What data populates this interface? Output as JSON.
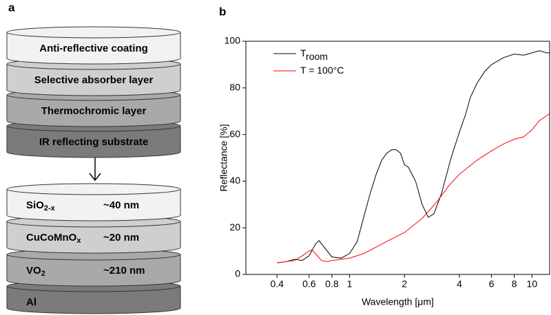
{
  "diagram": {
    "panel_label": "a",
    "stack_top": [
      {
        "text": "Anti-reflective coating",
        "color": "#f2f2f2"
      },
      {
        "text": "Selective absorber layer",
        "color": "#cfcfcf"
      },
      {
        "text": "Thermochromic layer",
        "color": "#a9a9a9"
      },
      {
        "text": "IR reflecting substrate",
        "color": "#7b7b7b"
      }
    ],
    "stack_bottom": [
      {
        "material": [
          "SiO",
          "2-x"
        ],
        "thickness": "~40 nm",
        "color": "#f2f2f2"
      },
      {
        "material": [
          "CuCoMnO",
          "x"
        ],
        "thickness": "~20 nm",
        "color": "#cfcfcf"
      },
      {
        "material": [
          "VO",
          "2"
        ],
        "thickness": "~210 nm",
        "color": "#a9a9a9"
      },
      {
        "material": [
          "Al"
        ],
        "color": "#7b7b7b"
      }
    ]
  },
  "chart_data": {
    "type": "line",
    "panel_label": "b",
    "x_label": "Wavelength [μm]",
    "y_label": "Reflectance [%]",
    "xscale": "log",
    "xlim": [
      0.27,
      12.5
    ],
    "ylim": [
      0,
      100
    ],
    "xticks": [
      0.4,
      0.6,
      0.8,
      1,
      2,
      4,
      6,
      8,
      10
    ],
    "yticks": [
      0,
      20,
      40,
      60,
      80,
      100
    ],
    "legend": "top-left",
    "series": [
      {
        "name": "T",
        "name_sub": "room",
        "color": "#000000",
        "x": [
          0.4,
          0.45,
          0.5,
          0.55,
          0.6,
          0.65,
          0.68,
          0.72,
          0.8,
          0.9,
          1.0,
          1.1,
          1.2,
          1.3,
          1.4,
          1.5,
          1.6,
          1.7,
          1.8,
          1.9,
          2.0,
          2.1,
          2.3,
          2.5,
          2.7,
          2.9,
          3.2,
          3.6,
          4.0,
          4.3,
          4.6,
          5.0,
          5.5,
          6,
          7,
          8,
          9,
          10,
          11,
          12,
          12.5
        ],
        "values": [
          5,
          5.5,
          6.5,
          6,
          8,
          13,
          14.5,
          12,
          7.5,
          7,
          9,
          14,
          25,
          35,
          43,
          49,
          52,
          53.5,
          53.5,
          52,
          47,
          46,
          40,
          30,
          24.5,
          26,
          35,
          50,
          61,
          68,
          76,
          82,
          87,
          90,
          93,
          94.5,
          94,
          95,
          96,
          95,
          95
        ]
      },
      {
        "name": "T = 100°C",
        "color": "#ff0000",
        "x": [
          0.4,
          0.5,
          0.55,
          0.6,
          0.62,
          0.65,
          0.7,
          0.75,
          0.8,
          0.9,
          1.0,
          1.2,
          1.5,
          2,
          2.5,
          3,
          3.5,
          4,
          5,
          6,
          7,
          8,
          9,
          10,
          11,
          12,
          12.5
        ],
        "values": [
          5,
          6,
          8,
          10,
          10.5,
          9,
          6,
          5.5,
          6,
          6.5,
          7,
          9,
          13,
          18,
          24,
          31,
          38,
          43,
          49,
          53,
          56,
          58,
          59,
          62,
          66,
          68,
          69
        ]
      }
    ]
  }
}
